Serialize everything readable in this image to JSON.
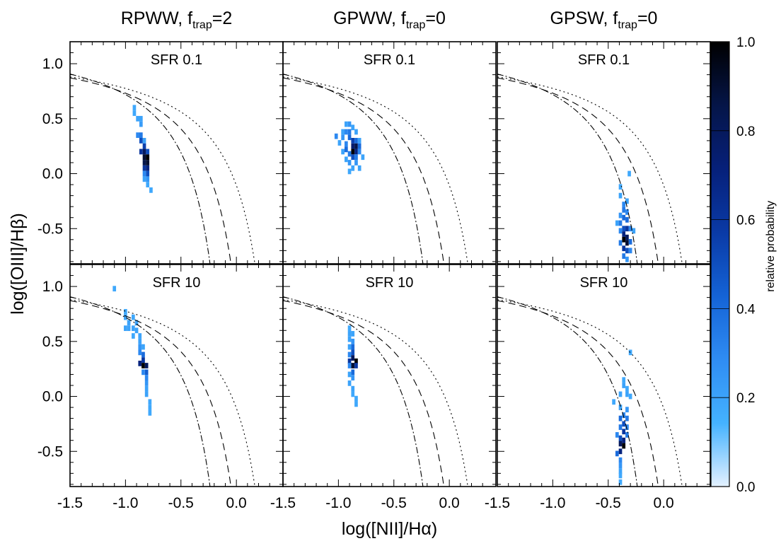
{
  "chart_data": {
    "type": "heatmap",
    "xlabel": "log([NII]/Hα)",
    "ylabel": "log([OIII]/Hβ)",
    "xlim": [
      -1.5,
      0.42
    ],
    "ylim": [
      -0.82,
      1.2
    ],
    "xticks": [
      "-1.5",
      "-1.0",
      "-0.5",
      "0.0"
    ],
    "yticks": [
      "1.0",
      "0.5",
      "0.0",
      "-0.5"
    ],
    "colorbar": {
      "label": "relative probability",
      "ticks": [
        "1.0",
        "0.8",
        "0.6",
        "0.4",
        "0.2",
        "0.0"
      ],
      "range": [
        0,
        1
      ],
      "colors": [
        "#e4f1ff",
        "#44b2ff",
        "#2f8cf3",
        "#1463d6",
        "#0a3aa6",
        "#06207a",
        "#051548",
        "#000000"
      ]
    },
    "bin_size": [
      0.03,
      0.05
    ],
    "columns": [
      {
        "name": "RPWW",
        "sub": "trap",
        "suffix": "=2"
      },
      {
        "name": "GPWW",
        "sub": "trap",
        "suffix": "=0"
      },
      {
        "name": "GPSW",
        "sub": "trap",
        "suffix": "=0"
      }
    ],
    "rows": [
      {
        "label": "SFR 0.1"
      },
      {
        "label": "SFR 10"
      }
    ],
    "panels": [
      {
        "column": 0,
        "row": 0,
        "cells": [
          [
            -0.92,
            0.6,
            0.18
          ],
          [
            -0.92,
            0.55,
            0.18
          ],
          [
            -0.89,
            0.5,
            0.2
          ],
          [
            -0.86,
            0.5,
            0.2
          ],
          [
            -0.86,
            0.45,
            0.22
          ],
          [
            -0.89,
            0.35,
            0.3
          ],
          [
            -0.86,
            0.35,
            0.35
          ],
          [
            -0.83,
            0.3,
            0.2
          ],
          [
            -0.86,
            0.3,
            0.5
          ],
          [
            -0.83,
            0.25,
            0.55
          ],
          [
            -0.86,
            0.2,
            0.6
          ],
          [
            -0.83,
            0.2,
            0.8
          ],
          [
            -0.8,
            0.2,
            0.5
          ],
          [
            -0.83,
            0.15,
            0.9
          ],
          [
            -0.8,
            0.15,
            1.0
          ],
          [
            -0.83,
            0.1,
            0.85
          ],
          [
            -0.8,
            0.1,
            0.9
          ],
          [
            -0.83,
            0.05,
            0.6
          ],
          [
            -0.8,
            0.05,
            0.7
          ],
          [
            -0.8,
            0.0,
            0.5
          ],
          [
            -0.83,
            0.0,
            0.3
          ],
          [
            -0.8,
            -0.05,
            0.25
          ],
          [
            -0.83,
            -0.05,
            0.2
          ],
          [
            -0.8,
            -0.1,
            0.18
          ],
          [
            -0.77,
            -0.15,
            0.18
          ]
        ]
      },
      {
        "column": 1,
        "row": 0,
        "cells": [
          [
            -0.93,
            0.45,
            0.2
          ],
          [
            -0.9,
            0.45,
            0.25
          ],
          [
            -0.87,
            0.42,
            0.2
          ],
          [
            -0.96,
            0.38,
            0.2
          ],
          [
            -0.93,
            0.38,
            0.3
          ],
          [
            -0.9,
            0.38,
            0.35
          ],
          [
            -0.84,
            0.38,
            0.2
          ],
          [
            -1.02,
            0.34,
            0.3
          ],
          [
            -0.96,
            0.33,
            0.25
          ],
          [
            -0.9,
            0.33,
            0.4
          ],
          [
            -0.87,
            0.3,
            0.55
          ],
          [
            -0.84,
            0.3,
            0.4
          ],
          [
            -0.81,
            0.3,
            0.2
          ],
          [
            -0.99,
            0.28,
            0.2
          ],
          [
            -0.93,
            0.27,
            0.3
          ],
          [
            -0.87,
            0.25,
            0.75
          ],
          [
            -0.84,
            0.25,
            0.85
          ],
          [
            -0.81,
            0.25,
            0.4
          ],
          [
            -0.93,
            0.22,
            0.4
          ],
          [
            -0.87,
            0.2,
            1.0
          ],
          [
            -0.84,
            0.2,
            0.7
          ],
          [
            -0.81,
            0.2,
            0.3
          ],
          [
            -0.96,
            0.2,
            0.2
          ],
          [
            -0.9,
            0.18,
            0.35
          ],
          [
            -0.87,
            0.15,
            0.5
          ],
          [
            -0.84,
            0.15,
            0.35
          ],
          [
            -0.78,
            0.15,
            0.2
          ],
          [
            -0.93,
            0.13,
            0.2
          ],
          [
            -0.9,
            0.1,
            0.25
          ],
          [
            -0.84,
            0.1,
            0.25
          ],
          [
            -0.87,
            0.05,
            0.2
          ],
          [
            -0.81,
            0.05,
            0.2
          ],
          [
            -0.9,
            0.02,
            0.18
          ]
        ]
      },
      {
        "column": 2,
        "row": 0,
        "cells": [
          [
            -0.31,
            0.0,
            0.18
          ],
          [
            -0.39,
            -0.12,
            0.18
          ],
          [
            -0.39,
            -0.2,
            0.2
          ],
          [
            -0.33,
            -0.25,
            0.2
          ],
          [
            -0.36,
            -0.28,
            0.3
          ],
          [
            -0.36,
            -0.33,
            0.35
          ],
          [
            -0.33,
            -0.35,
            0.3
          ],
          [
            -0.39,
            -0.38,
            0.25
          ],
          [
            -0.36,
            -0.4,
            0.4
          ],
          [
            -0.33,
            -0.42,
            0.4
          ],
          [
            -0.42,
            -0.45,
            0.2
          ],
          [
            -0.39,
            -0.45,
            0.35
          ],
          [
            -0.36,
            -0.5,
            0.5
          ],
          [
            -0.33,
            -0.5,
            0.6
          ],
          [
            -0.3,
            -0.5,
            0.3
          ],
          [
            -0.27,
            -0.52,
            0.2
          ],
          [
            -0.39,
            -0.52,
            0.3
          ],
          [
            -0.36,
            -0.55,
            0.7
          ],
          [
            -0.33,
            -0.58,
            0.8
          ],
          [
            -0.36,
            -0.6,
            1.0
          ],
          [
            -0.33,
            -0.63,
            0.9
          ],
          [
            -0.39,
            -0.63,
            0.35
          ],
          [
            -0.3,
            -0.62,
            0.4
          ],
          [
            -0.36,
            -0.68,
            0.6
          ],
          [
            -0.33,
            -0.7,
            0.5
          ],
          [
            -0.3,
            -0.7,
            0.3
          ],
          [
            -0.36,
            -0.75,
            0.35
          ],
          [
            -0.33,
            -0.78,
            0.25
          ]
        ]
      },
      {
        "column": 0,
        "row": 1,
        "cells": [
          [
            -1.1,
            0.98,
            0.18
          ],
          [
            -1.0,
            0.77,
            0.18
          ],
          [
            -1.0,
            0.72,
            0.2
          ],
          [
            -0.97,
            0.67,
            0.2
          ],
          [
            -0.93,
            0.72,
            0.18
          ],
          [
            -0.9,
            0.67,
            0.2
          ],
          [
            -1.0,
            0.62,
            0.2
          ],
          [
            -0.97,
            0.62,
            0.2
          ],
          [
            -0.93,
            0.62,
            0.2
          ],
          [
            -0.9,
            0.6,
            0.2
          ],
          [
            -0.93,
            0.55,
            0.18
          ],
          [
            -0.87,
            0.55,
            0.2
          ],
          [
            -0.87,
            0.5,
            0.2
          ],
          [
            -0.87,
            0.45,
            0.25
          ],
          [
            -0.84,
            0.45,
            0.2
          ],
          [
            -0.87,
            0.4,
            0.3
          ],
          [
            -0.84,
            0.38,
            0.4
          ],
          [
            -0.84,
            0.33,
            0.6
          ],
          [
            -0.87,
            0.3,
            0.7
          ],
          [
            -0.84,
            0.28,
            1.0
          ],
          [
            -0.81,
            0.28,
            0.8
          ],
          [
            -0.81,
            0.22,
            0.45
          ],
          [
            -0.84,
            0.22,
            0.3
          ],
          [
            -0.81,
            0.17,
            0.3
          ],
          [
            -0.81,
            0.12,
            0.25
          ],
          [
            -0.81,
            0.07,
            0.2
          ],
          [
            -0.81,
            0.02,
            0.2
          ],
          [
            -0.78,
            -0.05,
            0.18
          ],
          [
            -0.78,
            -0.1,
            0.18
          ],
          [
            -0.78,
            -0.15,
            0.18
          ]
        ]
      },
      {
        "column": 1,
        "row": 1,
        "cells": [
          [
            -0.9,
            0.62,
            0.18
          ],
          [
            -0.9,
            0.57,
            0.2
          ],
          [
            -0.87,
            0.57,
            0.2
          ],
          [
            -0.9,
            0.52,
            0.2
          ],
          [
            -0.87,
            0.5,
            0.25
          ],
          [
            -0.87,
            0.45,
            0.4
          ],
          [
            -0.9,
            0.45,
            0.2
          ],
          [
            -0.87,
            0.4,
            0.5
          ],
          [
            -0.9,
            0.38,
            0.3
          ],
          [
            -0.87,
            0.35,
            0.8
          ],
          [
            -0.84,
            0.32,
            1.0
          ],
          [
            -0.9,
            0.32,
            0.6
          ],
          [
            -0.87,
            0.28,
            0.9
          ],
          [
            -0.84,
            0.28,
            0.6
          ],
          [
            -0.9,
            0.28,
            0.3
          ],
          [
            -0.87,
            0.22,
            0.4
          ],
          [
            -0.9,
            0.2,
            0.2
          ],
          [
            -0.87,
            0.17,
            0.25
          ],
          [
            -0.9,
            0.12,
            0.2
          ],
          [
            -0.87,
            0.07,
            0.2
          ],
          [
            -0.87,
            0.02,
            0.18
          ],
          [
            -0.84,
            -0.02,
            0.18
          ],
          [
            -0.84,
            -0.07,
            0.18
          ]
        ]
      },
      {
        "column": 2,
        "row": 1,
        "cells": [
          [
            -0.3,
            0.4,
            0.18
          ],
          [
            -0.36,
            0.15,
            0.18
          ],
          [
            -0.36,
            0.1,
            0.2
          ],
          [
            -0.33,
            0.07,
            0.18
          ],
          [
            -0.39,
            0.02,
            0.2
          ],
          [
            -0.33,
            0.02,
            0.2
          ],
          [
            -0.3,
            0.0,
            0.18
          ],
          [
            -0.45,
            -0.05,
            0.18
          ],
          [
            -0.39,
            -0.1,
            0.2
          ],
          [
            -0.33,
            -0.12,
            0.25
          ],
          [
            -0.36,
            -0.17,
            0.3
          ],
          [
            -0.39,
            -0.2,
            0.4
          ],
          [
            -0.33,
            -0.2,
            0.35
          ],
          [
            -0.36,
            -0.25,
            0.5
          ],
          [
            -0.39,
            -0.28,
            0.35
          ],
          [
            -0.33,
            -0.28,
            0.3
          ],
          [
            -0.36,
            -0.32,
            0.6
          ],
          [
            -0.42,
            -0.35,
            0.3
          ],
          [
            -0.33,
            -0.35,
            0.35
          ],
          [
            -0.39,
            -0.38,
            0.5
          ],
          [
            -0.36,
            -0.4,
            0.7
          ],
          [
            -0.39,
            -0.43,
            0.8
          ],
          [
            -0.36,
            -0.45,
            1.0
          ],
          [
            -0.39,
            -0.5,
            0.7
          ],
          [
            -0.42,
            -0.52,
            0.4
          ],
          [
            -0.39,
            -0.58,
            0.3
          ],
          [
            -0.39,
            -0.63,
            0.25
          ],
          [
            -0.39,
            -0.68,
            0.2
          ],
          [
            -0.39,
            -0.72,
            0.18
          ],
          [
            -0.39,
            -0.78,
            0.18
          ]
        ]
      }
    ]
  }
}
